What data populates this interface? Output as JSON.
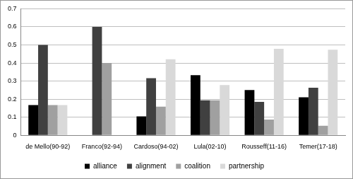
{
  "chart_data": {
    "type": "bar",
    "categories": [
      "de Mello(90-92)",
      "Franco(92-94)",
      "Cardoso(94-02)",
      "Lula(02-10)",
      "Rousseff(11-16)",
      "Temer(17-18)"
    ],
    "series": [
      {
        "name": "alliance",
        "color": "#000000",
        "values": [
          0.167,
          0,
          0.105,
          0.333,
          0.25,
          0.21
        ]
      },
      {
        "name": "alignment",
        "color": "#404040",
        "values": [
          0.5,
          0.6,
          0.316,
          0.194,
          0.185,
          0.263
        ]
      },
      {
        "name": "coalition",
        "color": "#a0a0a0",
        "values": [
          0.167,
          0.4,
          0.158,
          0.194,
          0.087,
          0.053
        ]
      },
      {
        "name": "partnership",
        "color": "#d9d9d9",
        "values": [
          0.167,
          0,
          0.421,
          0.278,
          0.478,
          0.474
        ]
      }
    ],
    "ylim": [
      0,
      0.7
    ],
    "yticks": [
      0,
      0.1,
      0.2,
      0.3,
      0.4,
      0.5,
      0.6,
      0.7
    ],
    "grid": true,
    "legend": "bottom"
  }
}
